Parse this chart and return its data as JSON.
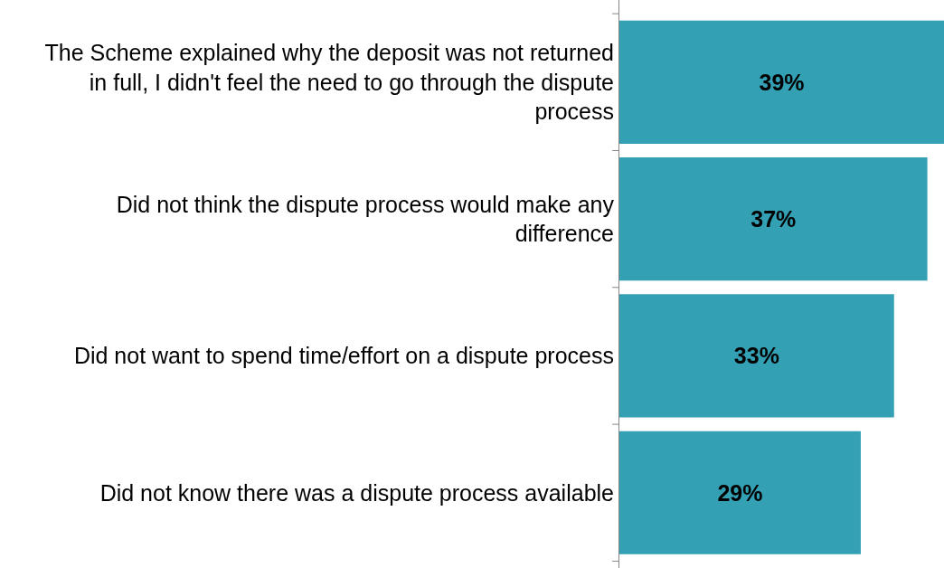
{
  "chart_data": {
    "type": "bar",
    "orientation": "horizontal",
    "categories": [
      "The Scheme explained why the deposit was not returned in full, I didn't feel the need to go through the dispute process",
      "Did not think the dispute process would make any difference",
      "Did not want to spend time/effort on a dispute process",
      "Did not know there was a dispute process available"
    ],
    "values": [
      39,
      37,
      33,
      29
    ],
    "value_labels": [
      "39%",
      "37%",
      "33%",
      "29%"
    ],
    "color": "#33a0b4",
    "grid": false
  }
}
